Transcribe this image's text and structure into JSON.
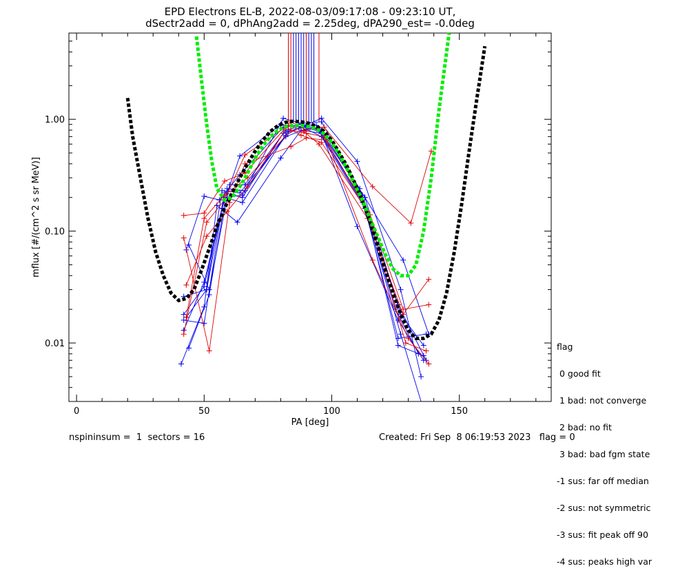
{
  "title": {
    "line1": "EPD Electrons EL-B, 2022-08-03/09:17:08 - 09:23:10 UT,",
    "line2": "dSectr2add = 0, dPhAng2add = 2.25deg, dPA290_est=  -0.0deg"
  },
  "footer": {
    "left": "nspininsum =  1  sectors = 16",
    "right": "Created: Fri Sep  8 06:19:53 2023   flag = 0"
  },
  "legend": {
    "title": "flag",
    "entries": [
      " 0 good fit",
      " 1 bad: not converge",
      " 2 bad: no fit",
      " 3 bad: bad fgm state",
      "-1 sus: far off median",
      "-2 sus: not symmetric",
      "-3 sus: fit peak off 90",
      "-4 sus: peaks high var"
    ]
  },
  "chart_data": {
    "type": "line",
    "xlabel": "PA [deg]",
    "ylabel": "mflux [#/(cm^2 s sr MeV)]",
    "xlim": [
      -3,
      186
    ],
    "ylim": [
      0.003,
      5.9
    ],
    "yscale": "log",
    "x_ticks": [
      0,
      50,
      100,
      150
    ],
    "y_ticks": [
      {
        "value": 0.01,
        "label": "0.01"
      },
      {
        "value": 0.1,
        "label": "0.10"
      },
      {
        "value": 1.0,
        "label": "1.00"
      }
    ],
    "colors": {
      "red": "#e00000",
      "blue": "#0000ee",
      "green": "#00ee00",
      "black": "#000000"
    },
    "fits": [
      {
        "color": "black",
        "x": [
          20,
          22,
          25,
          28,
          31,
          34,
          37,
          40,
          43,
          46,
          49,
          52,
          55,
          58,
          61,
          64,
          67,
          70,
          73,
          76,
          79,
          82,
          85,
          88,
          91,
          94,
          97,
          100,
          103,
          106,
          109,
          112,
          115,
          118,
          121,
          124,
          127,
          130,
          133,
          136,
          139,
          142,
          145,
          148,
          151,
          154,
          157,
          160
        ],
        "y": [
          1.55,
          0.7,
          0.3,
          0.13,
          0.065,
          0.04,
          0.028,
          0.024,
          0.025,
          0.03,
          0.045,
          0.07,
          0.11,
          0.16,
          0.22,
          0.3,
          0.4,
          0.52,
          0.65,
          0.78,
          0.88,
          0.94,
          0.96,
          0.95,
          0.92,
          0.87,
          0.78,
          0.65,
          0.5,
          0.38,
          0.27,
          0.19,
          0.12,
          0.075,
          0.045,
          0.028,
          0.018,
          0.013,
          0.011,
          0.011,
          0.012,
          0.016,
          0.028,
          0.065,
          0.18,
          0.55,
          1.6,
          4.5
        ]
      },
      {
        "color": "green",
        "x": [
          47,
          49,
          51,
          53,
          55,
          58,
          61,
          64,
          67,
          70,
          73,
          76,
          79,
          82,
          85,
          88,
          91,
          94,
          97,
          100,
          103,
          106,
          109,
          112,
          115,
          118,
          121,
          124,
          127,
          130,
          133,
          136,
          139,
          142,
          146
        ],
        "y": [
          5.5,
          2.2,
          0.9,
          0.42,
          0.24,
          0.19,
          0.2,
          0.25,
          0.33,
          0.45,
          0.58,
          0.7,
          0.8,
          0.86,
          0.88,
          0.88,
          0.86,
          0.82,
          0.74,
          0.62,
          0.48,
          0.36,
          0.26,
          0.19,
          0.13,
          0.09,
          0.062,
          0.046,
          0.04,
          0.04,
          0.05,
          0.1,
          0.3,
          1.2,
          6.0
        ]
      }
    ],
    "clipped_lines": [
      {
        "color": "red",
        "x": 83
      },
      {
        "color": "red",
        "x": 84
      },
      {
        "color": "blue",
        "x": 85
      },
      {
        "color": "blue",
        "x": 86
      },
      {
        "color": "blue",
        "x": 87
      },
      {
        "color": "blue",
        "x": 88
      },
      {
        "color": "blue",
        "x": 89
      },
      {
        "color": "red",
        "x": 90
      },
      {
        "color": "blue",
        "x": 91
      },
      {
        "color": "blue",
        "x": 92
      },
      {
        "color": "blue",
        "x": 93
      },
      {
        "color": "red",
        "x": 95
      }
    ],
    "series": [
      {
        "color": "blue",
        "x": [
          41,
          50,
          55,
          63,
          80,
          88,
          96,
          110,
          126,
          136
        ],
        "y": [
          0.0065,
          0.021,
          0.17,
          0.12,
          0.45,
          0.8,
          0.75,
          0.11,
          0.016,
          0.007
        ]
      },
      {
        "color": "blue",
        "x": [
          42,
          50,
          58,
          65,
          82,
          88,
          95,
          112,
          125,
          134
        ],
        "y": [
          0.013,
          0.035,
          0.2,
          0.18,
          0.72,
          0.86,
          0.8,
          0.18,
          0.02,
          0.008
        ]
      },
      {
        "color": "blue",
        "x": [
          43,
          51,
          58,
          65,
          81,
          89,
          95,
          112,
          126,
          137
        ],
        "y": [
          0.017,
          0.03,
          0.22,
          0.2,
          0.75,
          0.85,
          0.78,
          0.19,
          0.022,
          0.007
        ]
      },
      {
        "color": "blue",
        "x": [
          44,
          52,
          59,
          66,
          83,
          90,
          96,
          113,
          127,
          136
        ],
        "y": [
          0.009,
          0.027,
          0.24,
          0.23,
          0.78,
          0.87,
          0.8,
          0.2,
          0.018,
          0.0095
        ]
      },
      {
        "color": "blue",
        "x": [
          42,
          50,
          57,
          64,
          80,
          88,
          96,
          110,
          127,
          135
        ],
        "y": [
          0.016,
          0.015,
          0.16,
          0.47,
          0.9,
          0.85,
          1.02,
          0.42,
          0.03,
          0.005
        ]
      },
      {
        "color": "blue",
        "x": [
          44,
          52,
          60,
          66,
          82,
          89,
          95,
          113,
          128,
          138
        ],
        "y": [
          0.075,
          0.03,
          0.26,
          0.26,
          0.8,
          0.88,
          0.82,
          0.2,
          0.055,
          0.012
        ]
      },
      {
        "color": "blue",
        "x": [
          43,
          50,
          56,
          64,
          81,
          88,
          94,
          111,
          126,
          137
        ],
        "y": [
          0.068,
          0.205,
          0.19,
          0.32,
          0.85,
          0.9,
          0.88,
          0.24,
          0.011,
          0.012
        ]
      },
      {
        "color": "blue",
        "x": [
          42,
          50,
          58,
          65,
          81,
          88,
          96,
          112,
          126,
          136
        ],
        "y": [
          0.018,
          0.032,
          0.2,
          0.21,
          1.02,
          0.92,
          0.95,
          0.21,
          0.0095,
          0.0077
        ]
      },
      {
        "color": "blue",
        "x": [
          42,
          51,
          57,
          64,
          82,
          90,
          96,
          113,
          127,
          135
        ],
        "y": [
          0.026,
          0.03,
          0.23,
          0.22,
          0.7,
          0.82,
          0.7,
          0.16,
          0.012,
          0.0028
        ]
      },
      {
        "color": "red",
        "x": [
          42,
          50,
          58,
          66,
          84,
          90,
          97,
          116,
          131,
          139
        ],
        "y": [
          0.138,
          0.145,
          0.28,
          0.33,
          0.95,
          0.8,
          0.85,
          0.25,
          0.118,
          0.52
        ]
      },
      {
        "color": "red",
        "x": [
          42,
          52,
          60,
          66,
          84,
          90,
          98,
          116,
          130,
          138
        ],
        "y": [
          0.087,
          0.0085,
          0.18,
          0.4,
          0.57,
          0.68,
          0.65,
          0.055,
          0.011,
          0.0065
        ]
      },
      {
        "color": "red",
        "x": [
          43,
          51,
          59,
          67,
          83,
          89,
          95,
          114,
          128,
          138
        ],
        "y": [
          0.033,
          0.09,
          0.15,
          0.25,
          0.88,
          0.78,
          0.6,
          0.13,
          0.018,
          0.037
        ]
      },
      {
        "color": "red",
        "x": [
          42,
          51,
          58,
          66,
          82,
          88,
          96,
          114,
          129,
          137
        ],
        "y": [
          0.012,
          0.12,
          0.19,
          0.48,
          0.85,
          0.72,
          0.62,
          0.15,
          0.01,
          0.0085
        ]
      },
      {
        "color": "red",
        "x": [
          43,
          50,
          58,
          67,
          84,
          90,
          97,
          115,
          128,
          138
        ],
        "y": [
          0.017,
          0.13,
          0.21,
          0.3,
          0.8,
          0.75,
          0.7,
          0.14,
          0.02,
          0.022
        ]
      }
    ]
  }
}
